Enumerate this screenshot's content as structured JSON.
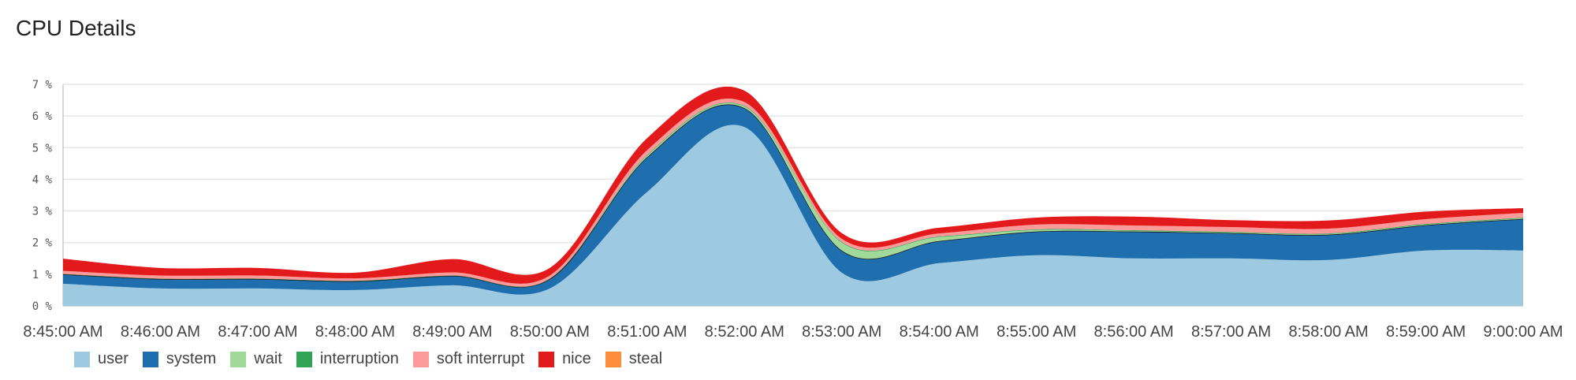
{
  "page": {
    "title": "CPU Details"
  },
  "chart_data": {
    "type": "area",
    "stacked": true,
    "title": "CPU Details",
    "ylim": [
      0,
      7
    ],
    "y_ticks": [
      "0 %",
      "1 %",
      "2 %",
      "3 %",
      "4 %",
      "5 %",
      "6 %",
      "7 %"
    ],
    "x": [
      "8:45:00 AM",
      "8:46:00 AM",
      "8:47:00 AM",
      "8:48:00 AM",
      "8:49:00 AM",
      "8:50:00 AM",
      "8:51:00 AM",
      "8:52:00 AM",
      "8:53:00 AM",
      "8:54:00 AM",
      "8:55:00 AM",
      "8:56:00 AM",
      "8:57:00 AM",
      "8:58:00 AM",
      "8:59:00 AM",
      "9:00:00 AM"
    ],
    "legend_position": "bottom-left",
    "grid": true,
    "series": [
      {
        "name": "user",
        "color": "#9ecae1",
        "values": [
          0.7,
          0.55,
          0.55,
          0.5,
          0.65,
          0.55,
          3.6,
          5.65,
          1.05,
          1.35,
          1.6,
          1.5,
          1.5,
          1.45,
          1.75,
          1.75
        ]
      },
      {
        "name": "system",
        "color": "#1f6fae",
        "values": [
          0.3,
          0.3,
          0.3,
          0.28,
          0.3,
          0.3,
          1.1,
          0.6,
          0.7,
          0.7,
          0.75,
          0.85,
          0.8,
          0.8,
          0.8,
          1.0
        ]
      },
      {
        "name": "wait",
        "color": "#a1d99b",
        "values": [
          0.0,
          0.0,
          0.0,
          0.0,
          0.0,
          0.0,
          0.05,
          0.05,
          0.25,
          0.12,
          0.05,
          0.02,
          0.02,
          0.02,
          0.02,
          0.02
        ]
      },
      {
        "name": "interruption",
        "color": "#31a354",
        "values": [
          0.01,
          0.01,
          0.01,
          0.01,
          0.01,
          0.01,
          0.02,
          0.02,
          0.02,
          0.02,
          0.02,
          0.02,
          0.02,
          0.02,
          0.02,
          0.02
        ]
      },
      {
        "name": "soft interrupt",
        "color": "#fb9a99",
        "values": [
          0.1,
          0.1,
          0.1,
          0.08,
          0.1,
          0.1,
          0.15,
          0.12,
          0.1,
          0.1,
          0.15,
          0.15,
          0.15,
          0.15,
          0.15,
          0.15
        ]
      },
      {
        "name": "nice",
        "color": "#e31a1c",
        "values": [
          0.38,
          0.24,
          0.24,
          0.18,
          0.42,
          0.24,
          0.38,
          0.36,
          0.18,
          0.18,
          0.22,
          0.28,
          0.22,
          0.26,
          0.24,
          0.15
        ]
      },
      {
        "name": "steal",
        "color": "#fd8d3c",
        "values": [
          0,
          0,
          0,
          0,
          0,
          0,
          0,
          0,
          0,
          0,
          0,
          0,
          0,
          0,
          0,
          0
        ]
      }
    ]
  }
}
